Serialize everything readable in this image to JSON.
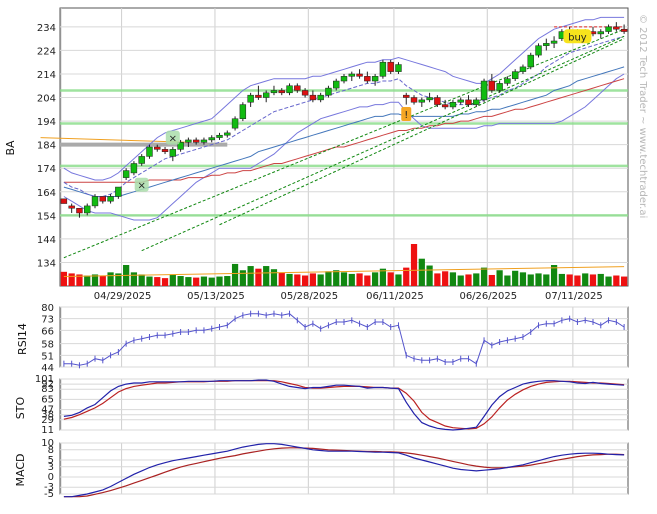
{
  "chart_data": {
    "type": "candlestick-panels",
    "ticker": "BA",
    "watermark": "© 2012 Tech Trader ~ www.techtrader.ai",
    "x_labels": [
      "04/29/2025",
      "05/13/2025",
      "05/28/2025",
      "06/11/2025",
      "06/26/2025",
      "07/11/2025"
    ],
    "grid": true,
    "price": {
      "ylim": [
        124,
        242
      ],
      "yticks": [
        134,
        144,
        154,
        164,
        174,
        184,
        194,
        204,
        214,
        224,
        234
      ],
      "candles": [
        [
          161,
          161,
          159,
          159
        ],
        [
          158,
          159,
          155,
          157
        ],
        [
          157,
          157,
          153,
          155
        ],
        [
          155,
          159,
          154,
          158
        ],
        [
          158,
          163,
          157,
          162
        ],
        [
          162,
          162,
          159,
          160
        ],
        [
          160,
          163,
          159,
          162
        ],
        [
          162,
          166,
          161,
          166
        ],
        [
          170,
          174,
          169,
          173
        ],
        [
          172,
          177,
          171,
          176
        ],
        [
          176,
          180,
          175,
          179
        ],
        [
          179,
          184,
          178,
          183
        ],
        [
          183,
          184,
          181,
          182
        ],
        [
          182,
          183,
          180,
          181
        ],
        [
          179,
          183,
          177,
          182
        ],
        [
          182,
          186,
          181,
          185
        ],
        [
          185,
          187,
          183,
          186
        ],
        [
          186,
          187,
          184,
          185
        ],
        [
          185,
          187,
          184,
          186
        ],
        [
          186,
          188,
          185,
          187
        ],
        [
          187,
          189,
          186,
          188
        ],
        [
          188,
          190,
          187,
          189
        ],
        [
          191,
          196,
          190,
          195
        ],
        [
          195,
          202,
          194,
          201
        ],
        [
          202,
          206,
          200,
          205
        ],
        [
          205,
          209,
          203,
          204
        ],
        [
          204,
          207,
          202,
          206
        ],
        [
          206,
          209,
          205,
          207
        ],
        [
          207,
          208,
          205,
          206
        ],
        [
          206,
          210,
          205,
          209
        ],
        [
          209,
          210,
          206,
          207
        ],
        [
          207,
          208,
          204,
          205
        ],
        [
          205,
          207,
          202,
          203
        ],
        [
          203,
          206,
          202,
          205
        ],
        [
          205,
          209,
          204,
          208
        ],
        [
          208,
          212,
          207,
          211
        ],
        [
          211,
          214,
          210,
          213
        ],
        [
          213,
          215,
          211,
          214
        ],
        [
          214,
          216,
          212,
          213
        ],
        [
          213,
          215,
          210,
          211
        ],
        [
          211,
          214,
          209,
          213
        ],
        [
          213,
          220,
          212,
          219
        ],
        [
          219,
          220,
          214,
          215
        ],
        [
          215,
          219,
          214,
          218
        ],
        [
          205,
          206,
          201,
          204
        ],
        [
          204,
          205,
          201,
          202
        ],
        [
          202,
          204,
          200,
          203
        ],
        [
          203,
          206,
          202,
          204
        ],
        [
          204,
          205,
          200,
          201
        ],
        [
          201,
          203,
          199,
          200
        ],
        [
          200,
          203,
          199,
          202
        ],
        [
          202,
          204,
          201,
          203
        ],
        [
          203,
          205,
          200,
          201
        ],
        [
          201,
          204,
          200,
          203
        ],
        [
          203,
          212,
          202,
          211
        ],
        [
          211,
          214,
          206,
          207
        ],
        [
          207,
          211,
          206,
          210
        ],
        [
          210,
          213,
          209,
          212
        ],
        [
          212,
          216,
          211,
          215
        ],
        [
          215,
          218,
          214,
          217
        ],
        [
          217,
          223,
          216,
          222
        ],
        [
          222,
          227,
          221,
          226
        ],
        [
          226,
          229,
          224,
          227
        ],
        [
          227,
          230,
          225,
          228
        ],
        [
          229,
          233,
          228,
          232
        ],
        [
          232,
          234,
          230,
          231
        ],
        [
          231,
          233,
          229,
          230
        ],
        [
          230,
          233,
          229,
          232
        ],
        [
          232,
          234,
          230,
          231
        ],
        [
          231,
          233,
          229,
          232
        ],
        [
          232,
          235,
          231,
          234
        ],
        [
          234,
          236,
          232,
          233
        ],
        [
          233,
          235,
          231,
          232
        ]
      ],
      "sma_short": [
        168,
        166,
        165,
        163,
        162,
        162,
        163,
        165,
        168,
        170,
        172,
        174,
        176,
        178,
        179,
        180,
        181,
        182,
        183,
        184,
        185,
        186,
        188,
        190,
        192,
        194,
        196,
        198,
        199,
        200,
        201,
        202,
        203,
        204,
        205,
        206,
        207,
        208,
        209,
        210,
        210,
        211,
        211,
        212,
        209,
        207,
        205,
        204,
        203,
        202,
        201,
        201,
        201,
        201,
        203,
        204,
        205,
        207,
        208,
        210,
        212,
        214,
        217,
        219,
        221,
        223,
        224,
        225,
        226,
        227,
        228,
        229,
        230
      ],
      "sma_mid": [
        166,
        165,
        164,
        163,
        162,
        162,
        162,
        162,
        163,
        164,
        165,
        166,
        167,
        168,
        169,
        170,
        171,
        172,
        173,
        174,
        175,
        176,
        177,
        178,
        179,
        181,
        182,
        183,
        184,
        185,
        186,
        187,
        188,
        189,
        190,
        191,
        192,
        193,
        194,
        195,
        196,
        196,
        197,
        197,
        196,
        196,
        196,
        196,
        196,
        196,
        196,
        197,
        197,
        198,
        198,
        199,
        199,
        200,
        201,
        202,
        203,
        204,
        205,
        207,
        208,
        209,
        211,
        212,
        213,
        214,
        215,
        216,
        217
      ],
      "sma_long": [
        168,
        168,
        168,
        168,
        168,
        168,
        168,
        168,
        168,
        168,
        168,
        169,
        169,
        169,
        169,
        169,
        170,
        170,
        170,
        171,
        171,
        172,
        172,
        173,
        173,
        174,
        175,
        176,
        176,
        177,
        178,
        179,
        180,
        181,
        182,
        183,
        183,
        184,
        185,
        186,
        187,
        188,
        189,
        190,
        190,
        191,
        191,
        192,
        192,
        193,
        193,
        194,
        194,
        195,
        196,
        196,
        197,
        198,
        199,
        199,
        200,
        201,
        202,
        203,
        204,
        205,
        206,
        207,
        208,
        209,
        210,
        211,
        212
      ],
      "bb_upper": [
        174,
        172,
        171,
        170,
        169,
        169,
        170,
        172,
        175,
        178,
        181,
        184,
        187,
        189,
        190,
        191,
        192,
        193,
        194,
        195,
        198,
        201,
        204,
        207,
        209,
        210,
        211,
        212,
        212,
        212,
        212,
        212,
        213,
        213,
        214,
        215,
        216,
        217,
        218,
        219,
        219,
        220,
        220,
        221,
        220,
        219,
        218,
        217,
        216,
        215,
        213,
        212,
        211,
        210,
        210,
        212,
        214,
        217,
        220,
        223,
        226,
        229,
        231,
        233,
        234,
        235,
        236,
        237,
        237,
        238,
        238,
        238,
        238
      ],
      "bb_lower": [
        162,
        160,
        158,
        156,
        155,
        155,
        155,
        154,
        153,
        152,
        152,
        152,
        153,
        156,
        159,
        162,
        165,
        168,
        170,
        172,
        174,
        174,
        174,
        174,
        174,
        176,
        178,
        180,
        183,
        186,
        189,
        191,
        193,
        195,
        196,
        197,
        198,
        199,
        200,
        200,
        201,
        201,
        202,
        202,
        198,
        195,
        192,
        191,
        191,
        191,
        191,
        191,
        191,
        191,
        192,
        192,
        193,
        193,
        193,
        193,
        193,
        193,
        193,
        193,
        194,
        196,
        198,
        200,
        203,
        206,
        209,
        212,
        214
      ],
      "trend_lines": [
        {
          "color": "#118811",
          "points": [
            [
              0,
              136
            ],
            [
              72,
              233
            ]
          ]
        },
        {
          "color": "#118811",
          "points": [
            [
              10,
              139
            ],
            [
              72,
              230
            ]
          ]
        },
        {
          "color": "#118811",
          "points": [
            [
              20,
              150
            ],
            [
              72,
              229
            ]
          ]
        }
      ],
      "horizontal_lines": [
        {
          "value": 154,
          "color": "#88dd88"
        },
        {
          "value": 175,
          "color": "#88dd88"
        },
        {
          "value": 193,
          "color": "#88dd88"
        },
        {
          "value": 207,
          "color": "#88dd88"
        }
      ],
      "orange_line": [
        [
          0,
          187
        ],
        [
          16,
          185
        ]
      ],
      "resistance_dash": {
        "value": 234,
        "from": 63,
        "to": 72,
        "color": "#dd2222"
      },
      "volume": [
        27,
        24,
        22,
        20,
        22,
        20,
        26,
        24,
        40,
        26,
        22,
        18,
        17,
        15,
        22,
        19,
        17,
        16,
        18,
        16,
        18,
        19,
        42,
        30,
        38,
        33,
        38,
        32,
        25,
        23,
        22,
        20,
        24,
        22,
        28,
        30,
        26,
        23,
        24,
        20,
        26,
        33,
        26,
        22,
        35,
        80,
        52,
        39,
        24,
        28,
        26,
        20,
        22,
        24,
        35,
        21,
        30,
        20,
        29,
        26,
        22,
        24,
        22,
        40,
        23,
        22,
        20,
        24,
        22,
        23,
        18,
        20,
        18
      ],
      "volume_avg": [
        [
          0,
          18
        ],
        [
          72,
          37
        ]
      ],
      "annotations": [
        {
          "type": "x",
          "index": 14,
          "price": 187
        },
        {
          "type": "x",
          "index": 10,
          "price": 167
        },
        {
          "type": "exclamation",
          "index": 44,
          "price": 197
        },
        {
          "type": "buy",
          "index": 66,
          "price": 230
        }
      ]
    },
    "rsi": {
      "label": "RSI14",
      "ylim": [
        44,
        80
      ],
      "yticks": [
        44,
        51,
        58,
        66,
        73,
        80
      ],
      "values": [
        46,
        46,
        45,
        46,
        49,
        48,
        51,
        53,
        58,
        60,
        61,
        62,
        63,
        63,
        64,
        65,
        65,
        66,
        66,
        67,
        68,
        69,
        73,
        75,
        76,
        76,
        75,
        76,
        75,
        76,
        72,
        68,
        70,
        67,
        69,
        71,
        71,
        72,
        70,
        68,
        71,
        71,
        68,
        69,
        51,
        49,
        48,
        48,
        49,
        47,
        47,
        49,
        49,
        46,
        60,
        57,
        59,
        60,
        61,
        62,
        65,
        69,
        70,
        70,
        72,
        73,
        71,
        72,
        71,
        69,
        72,
        71,
        68
      ]
    },
    "sto": {
      "label": "STO",
      "ylim": [
        11,
        101
      ],
      "yticks": [
        11,
        29,
        38,
        47,
        65,
        83,
        92,
        101
      ],
      "k": [
        35,
        37,
        42,
        50,
        56,
        68,
        80,
        88,
        92,
        94,
        94,
        96,
        96,
        96,
        96,
        96,
        97,
        97,
        97,
        97,
        98,
        98,
        98,
        98,
        98,
        99,
        99,
        97,
        92,
        88,
        86,
        84,
        86,
        86,
        88,
        90,
        90,
        89,
        88,
        85,
        86,
        86,
        85,
        84,
        60,
        40,
        24,
        18,
        14,
        12,
        11,
        12,
        14,
        16,
        35,
        55,
        70,
        80,
        86,
        92,
        95,
        97,
        98,
        98,
        97,
        96,
        94,
        93,
        95,
        93,
        92,
        91,
        90
      ],
      "d": [
        30,
        33,
        38,
        44,
        50,
        58,
        68,
        78,
        84,
        88,
        90,
        92,
        94,
        94,
        95,
        96,
        96,
        96,
        96,
        97,
        97,
        97,
        98,
        98,
        98,
        98,
        98,
        98,
        96,
        93,
        90,
        86,
        85,
        85,
        86,
        87,
        88,
        88,
        88,
        87,
        86,
        86,
        85,
        85,
        76,
        62,
        42,
        30,
        24,
        18,
        15,
        14,
        13,
        14,
        22,
        34,
        50,
        64,
        74,
        82,
        88,
        92,
        95,
        96,
        97,
        97,
        96,
        95,
        94,
        94,
        93,
        92,
        91
      ]
    },
    "macd": {
      "label": "MACD",
      "ylim": [
        -5,
        10
      ],
      "yticks": [
        -5,
        -3,
        0,
        3,
        5,
        8,
        10
      ],
      "macd_line": [
        -6,
        -5.8,
        -5.4,
        -5,
        -4.4,
        -3.8,
        -2.8,
        -1.6,
        -0.4,
        0.8,
        1.8,
        2.8,
        3.6,
        4.2,
        4.8,
        5.2,
        5.6,
        6,
        6.4,
        6.8,
        7.2,
        7.6,
        8.2,
        8.8,
        9.2,
        9.6,
        9.8,
        9.8,
        9.6,
        9.2,
        8.8,
        8.4,
        8,
        7.8,
        7.6,
        7.6,
        7.6,
        7.6,
        7.5,
        7.4,
        7.3,
        7.3,
        7.2,
        7.1,
        6.4,
        5.6,
        5,
        4.4,
        3.8,
        3.2,
        2.6,
        2.2,
        2,
        1.8,
        2,
        2.2,
        2.4,
        2.8,
        3.2,
        3.6,
        4.2,
        4.8,
        5.4,
        6,
        6.4,
        6.7,
        6.9,
        7,
        7,
        6.9,
        6.7,
        6.6,
        6.5
      ],
      "signal_line": [
        -6.5,
        -6.3,
        -6,
        -5.6,
        -5.1,
        -4.6,
        -4,
        -3.3,
        -2.6,
        -1.8,
        -1,
        -0.2,
        0.6,
        1.4,
        2.2,
        2.9,
        3.5,
        4,
        4.5,
        5,
        5.5,
        5.9,
        6.3,
        6.8,
        7.2,
        7.6,
        8,
        8.3,
        8.5,
        8.6,
        8.6,
        8.5,
        8.4,
        8.2,
        8,
        7.9,
        7.8,
        7.7,
        7.6,
        7.5,
        7.5,
        7.4,
        7.4,
        7.3,
        7.1,
        6.8,
        6.4,
        6,
        5.6,
        5.1,
        4.6,
        4.1,
        3.6,
        3.2,
        2.9,
        2.7,
        2.7,
        2.8,
        3,
        3.2,
        3.5,
        3.9,
        4.3,
        4.8,
        5.2,
        5.6,
        6,
        6.3,
        6.5,
        6.6,
        6.7,
        6.7,
        6.6
      ]
    }
  }
}
